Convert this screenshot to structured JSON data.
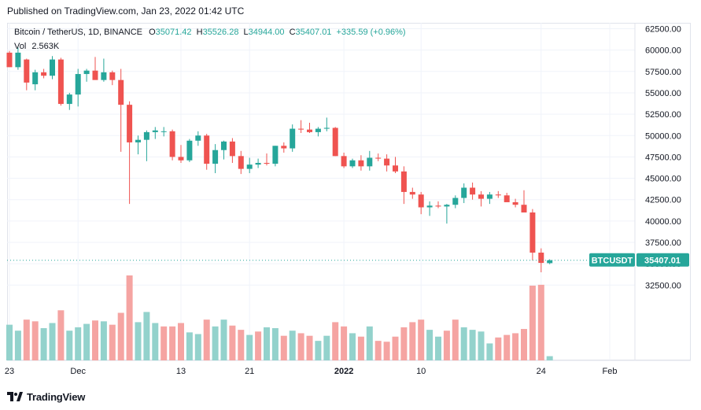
{
  "published": "Published on TradingView.com, Jan 23, 2022 01:42 UTC",
  "legend": {
    "symbol": "Bitcoin / TetherUS, 1D, BINANCE",
    "o_label": "O",
    "o_value": "35071.42",
    "h_label": "H",
    "h_value": "35526.28",
    "l_label": "L",
    "l_value": "34944.00",
    "c_label": "C",
    "c_value": "35407.01",
    "change": "+335.59 (+0.96%)",
    "vol_label": "Vol",
    "vol_value": "2.563K"
  },
  "price_badge": {
    "ticker": "BTCUSDT",
    "price": "35407.01"
  },
  "brand": "TradingView",
  "colors": {
    "up": "#26a69a",
    "down": "#ef5350",
    "vol_up": "#93d2cc",
    "vol_down": "#f5a4a2",
    "badge": "#26a69a"
  },
  "chart_data": {
    "type": "candlestick",
    "y_ticks": [
      "62500.00",
      "60000.00",
      "57500.00",
      "55000.00",
      "52500.00",
      "50000.00",
      "47500.00",
      "45000.00",
      "42500.00",
      "40000.00",
      "37500.00",
      "35000.00",
      "32500.00"
    ],
    "x_ticks": [
      {
        "label": "23",
        "day": 0
      },
      {
        "label": "Dec",
        "day": 8
      },
      {
        "label": "13",
        "day": 20
      },
      {
        "label": "21",
        "day": 28
      },
      {
        "label": "2022",
        "day": 39,
        "bold": true
      },
      {
        "label": "10",
        "day": 48
      },
      {
        "label": "24",
        "day": 62
      },
      {
        "label": "Feb",
        "day": 70
      }
    ],
    "ylim": [
      31000,
      63500
    ],
    "last_price": 35407.01,
    "candles": [
      [
        59700,
        59900,
        58100,
        58000
      ],
      [
        58000,
        60300,
        57700,
        59700
      ],
      [
        58900,
        59000,
        55300,
        56200
      ],
      [
        56000,
        57700,
        55300,
        57400
      ],
      [
        57400,
        57800,
        56700,
        57000
      ],
      [
        57000,
        59300,
        56600,
        58900
      ],
      [
        58900,
        59100,
        53500,
        53700
      ],
      [
        53700,
        55000,
        53000,
        54800
      ],
      [
        54800,
        57800,
        53400,
        57200
      ],
      [
        57200,
        57800,
        56300,
        57600
      ],
      [
        57600,
        59200,
        56600,
        56500
      ],
      [
        56500,
        59000,
        56300,
        57400
      ],
      [
        57400,
        57600,
        55900,
        56500
      ],
      [
        56500,
        57800,
        48100,
        53600
      ],
      [
        53600,
        54000,
        42000,
        49200
      ],
      [
        49200,
        50000,
        47800,
        49500
      ],
      [
        49500,
        50600,
        47000,
        50400
      ],
      [
        50400,
        51000,
        49600,
        50600
      ],
      [
        50500,
        51000,
        49900,
        50500
      ],
      [
        50500,
        50700,
        47100,
        47500
      ],
      [
        47500,
        48900,
        46800,
        47100
      ],
      [
        47100,
        49600,
        46900,
        49400
      ],
      [
        49400,
        50500,
        48800,
        50000
      ],
      [
        50000,
        50200,
        46000,
        46700
      ],
      [
        46700,
        49000,
        45600,
        48300
      ],
      [
        48300,
        49400,
        47200,
        49300
      ],
      [
        49300,
        49700,
        46800,
        47600
      ],
      [
        47600,
        48200,
        45500,
        46100
      ],
      [
        46100,
        47400,
        45600,
        46600
      ],
      [
        46600,
        47300,
        46200,
        46800
      ],
      [
        46800,
        47900,
        46500,
        46700
      ],
      [
        46700,
        48800,
        46400,
        48800
      ],
      [
        48800,
        49200,
        48000,
        48500
      ],
      [
        48500,
        51300,
        48100,
        50800
      ],
      [
        50800,
        51800,
        50300,
        50700
      ],
      [
        50700,
        51500,
        50300,
        50400
      ],
      [
        50400,
        51000,
        49900,
        50800
      ],
      [
        50800,
        52100,
        50500,
        50900
      ],
      [
        50900,
        51000,
        47600,
        47600
      ],
      [
        47600,
        48000,
        46200,
        46400
      ],
      [
        46400,
        47300,
        46200,
        47100
      ],
      [
        47100,
        47700,
        45900,
        46400
      ],
      [
        46400,
        48200,
        45900,
        47400
      ],
      [
        47400,
        47900,
        47000,
        47300
      ],
      [
        47300,
        47800,
        45800,
        46500
      ],
      [
        46500,
        47500,
        45600,
        45800
      ],
      [
        45800,
        46400,
        42000,
        43400
      ],
      [
        43400,
        43900,
        42600,
        43100
      ],
      [
        43100,
        43400,
        40800,
        41600
      ],
      [
        41600,
        42300,
        40600,
        41800
      ],
      [
        41800,
        42300,
        41500,
        41700
      ],
      [
        41700,
        42000,
        39700,
        41900
      ],
      [
        41900,
        43000,
        41500,
        42700
      ],
      [
        42700,
        44400,
        42100,
        43900
      ],
      [
        43900,
        44500,
        42500,
        43100
      ],
      [
        43100,
        43500,
        41700,
        42600
      ],
      [
        42600,
        43400,
        42000,
        43100
      ],
      [
        43100,
        43500,
        42700,
        43000
      ],
      [
        43000,
        43300,
        42500,
        42200
      ],
      [
        42200,
        42600,
        41600,
        41900
      ],
      [
        41900,
        43600,
        41300,
        41000
      ],
      [
        41000,
        41400,
        35400,
        36300
      ],
      [
        36300,
        36800,
        34000,
        35100
      ],
      [
        35071.42,
        35526.28,
        34944,
        35407.01
      ]
    ],
    "volume": [
      {
        "d": 0,
        "v": 0.42,
        "up": true
      },
      {
        "d": 1,
        "v": 0.35,
        "up": true
      },
      {
        "d": 2,
        "v": 0.48,
        "up": false
      },
      {
        "d": 3,
        "v": 0.46,
        "up": false
      },
      {
        "d": 4,
        "v": 0.38,
        "up": true
      },
      {
        "d": 5,
        "v": 0.44,
        "up": true
      },
      {
        "d": 6,
        "v": 0.59,
        "up": false
      },
      {
        "d": 7,
        "v": 0.35,
        "up": true
      },
      {
        "d": 8,
        "v": 0.39,
        "up": true
      },
      {
        "d": 9,
        "v": 0.43,
        "up": true
      },
      {
        "d": 10,
        "v": 0.47,
        "up": false
      },
      {
        "d": 11,
        "v": 0.46,
        "up": true
      },
      {
        "d": 12,
        "v": 0.42,
        "up": false
      },
      {
        "d": 13,
        "v": 0.56,
        "up": false
      },
      {
        "d": 14,
        "v": 1.0,
        "up": false
      },
      {
        "d": 15,
        "v": 0.45,
        "up": true
      },
      {
        "d": 16,
        "v": 0.57,
        "up": true
      },
      {
        "d": 17,
        "v": 0.44,
        "up": true
      },
      {
        "d": 18,
        "v": 0.4,
        "up": false
      },
      {
        "d": 19,
        "v": 0.4,
        "up": false
      },
      {
        "d": 20,
        "v": 0.44,
        "up": false
      },
      {
        "d": 21,
        "v": 0.33,
        "up": true
      },
      {
        "d": 22,
        "v": 0.31,
        "up": true
      },
      {
        "d": 23,
        "v": 0.48,
        "up": false
      },
      {
        "d": 24,
        "v": 0.4,
        "up": true
      },
      {
        "d": 25,
        "v": 0.48,
        "up": true
      },
      {
        "d": 26,
        "v": 0.41,
        "up": false
      },
      {
        "d": 27,
        "v": 0.36,
        "up": false
      },
      {
        "d": 28,
        "v": 0.3,
        "up": true
      },
      {
        "d": 29,
        "v": 0.34,
        "up": false
      },
      {
        "d": 30,
        "v": 0.39,
        "up": true
      },
      {
        "d": 31,
        "v": 0.38,
        "up": true
      },
      {
        "d": 32,
        "v": 0.29,
        "up": false
      },
      {
        "d": 33,
        "v": 0.35,
        "up": true
      },
      {
        "d": 34,
        "v": 0.32,
        "up": false
      },
      {
        "d": 35,
        "v": 0.29,
        "up": false
      },
      {
        "d": 36,
        "v": 0.23,
        "up": true
      },
      {
        "d": 37,
        "v": 0.29,
        "up": true
      },
      {
        "d": 38,
        "v": 0.45,
        "up": false
      },
      {
        "d": 39,
        "v": 0.4,
        "up": false
      },
      {
        "d": 40,
        "v": 0.32,
        "up": true
      },
      {
        "d": 41,
        "v": 0.28,
        "up": false
      },
      {
        "d": 42,
        "v": 0.4,
        "up": true
      },
      {
        "d": 43,
        "v": 0.23,
        "up": false
      },
      {
        "d": 44,
        "v": 0.22,
        "up": false
      },
      {
        "d": 45,
        "v": 0.28,
        "up": false
      },
      {
        "d": 46,
        "v": 0.39,
        "up": false
      },
      {
        "d": 47,
        "v": 0.45,
        "up": false
      },
      {
        "d": 48,
        "v": 0.48,
        "up": false
      },
      {
        "d": 49,
        "v": 0.36,
        "up": true
      },
      {
        "d": 50,
        "v": 0.28,
        "up": true
      },
      {
        "d": 51,
        "v": 0.35,
        "up": false
      },
      {
        "d": 52,
        "v": 0.48,
        "up": false
      },
      {
        "d": 53,
        "v": 0.39,
        "up": true
      },
      {
        "d": 54,
        "v": 0.36,
        "up": true
      },
      {
        "d": 55,
        "v": 0.34,
        "up": true
      },
      {
        "d": 56,
        "v": 0.2,
        "up": true
      },
      {
        "d": 57,
        "v": 0.27,
        "up": false
      },
      {
        "d": 58,
        "v": 0.3,
        "up": false
      },
      {
        "d": 59,
        "v": 0.32,
        "up": false
      },
      {
        "d": 60,
        "v": 0.37,
        "up": false
      },
      {
        "d": 61,
        "v": 0.88,
        "up": false
      },
      {
        "d": 62,
        "v": 0.89,
        "up": false
      },
      {
        "d": 63,
        "v": 0.05,
        "up": true
      }
    ]
  }
}
